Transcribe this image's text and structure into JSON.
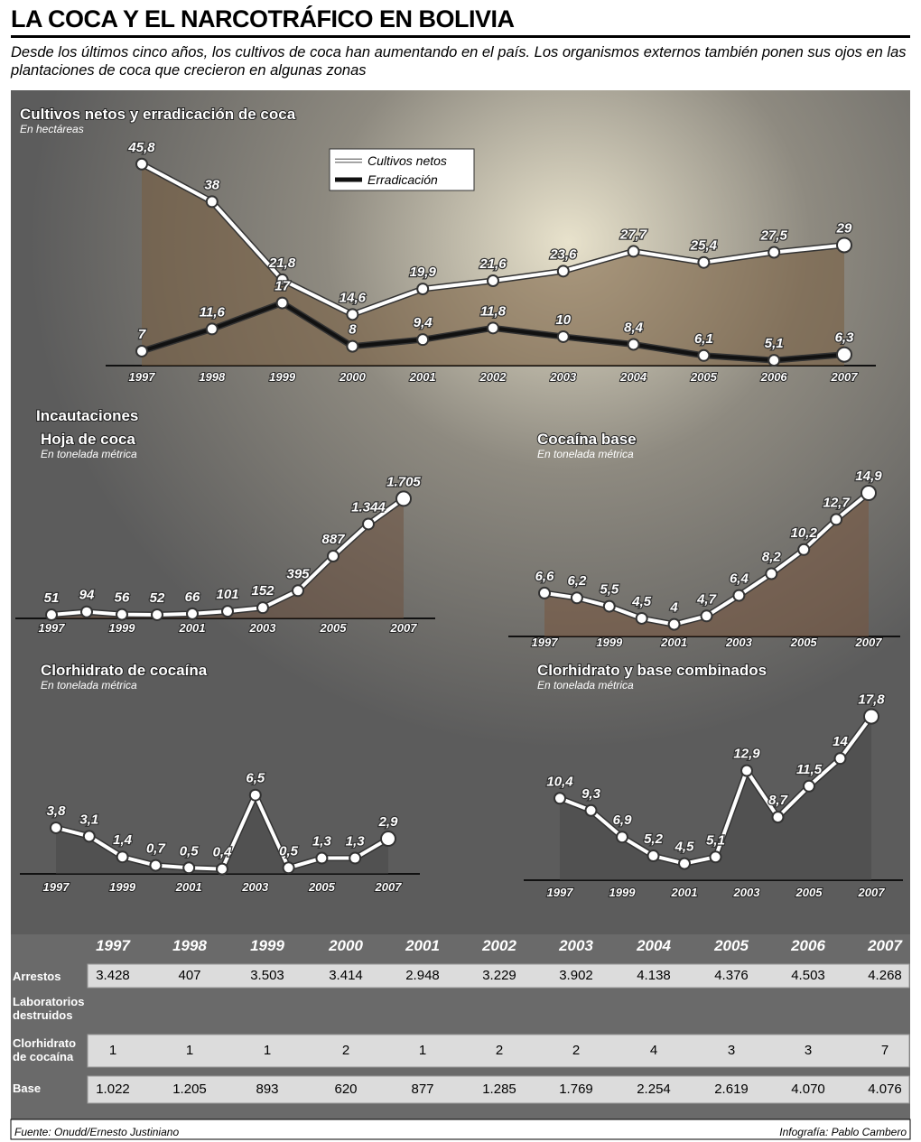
{
  "title": "LA COCA Y EL NARCOTRÁFICO EN BOLIVIA",
  "subtitle": "Desde los últimos cinco años, los cultivos de coca han aumentando en el país. Los organismos externos también ponen sus ojos en las plantaciones de coca que crecieron en algunas zonas",
  "section_title": "Incautaciones",
  "chart_data": [
    {
      "type": "line",
      "title": "Cultivos netos y erradicación de coca",
      "subtitle": "En hectáreas",
      "categories": [
        "1997",
        "1998",
        "1999",
        "2000",
        "2001",
        "2002",
        "2003",
        "2004",
        "2005",
        "2006",
        "2007"
      ],
      "series": [
        {
          "name": "Cultivos netos",
          "color": "#ffffff",
          "values": [
            45.8,
            38,
            21.8,
            14.6,
            19.9,
            21.6,
            23.6,
            27.7,
            25.4,
            27.5,
            29
          ],
          "value_labels": [
            "45,8",
            "38",
            "21,8",
            "14,6",
            "19,9",
            "21,6",
            "23,6",
            "27,7",
            "25,4",
            "27,5",
            "29"
          ]
        },
        {
          "name": "Erradicación",
          "color": "#111111",
          "values": [
            7,
            11.6,
            17,
            8,
            9.4,
            11.8,
            10,
            8.4,
            6.1,
            5.1,
            6.3
          ],
          "value_labels": [
            "7",
            "11,6",
            "17",
            "8",
            "9,4",
            "11,8",
            "10",
            "8,4",
            "6,1",
            "5,1",
            "6,3"
          ]
        }
      ],
      "ylim": [
        4,
        48
      ]
    },
    {
      "type": "line",
      "title": "Hoja de coca",
      "subtitle": "En tonelada métrica",
      "categories": [
        "1997",
        null,
        "1999",
        null,
        "2001",
        null,
        "2003",
        null,
        "2005",
        null,
        "2007"
      ],
      "values": [
        51,
        94,
        56,
        52,
        66,
        101,
        152,
        395,
        887,
        1344,
        1705
      ],
      "value_labels": [
        "51",
        "94",
        "56",
        "52",
        "66",
        "101",
        "152",
        "395",
        "887",
        "1.344",
        "1.705"
      ],
      "color": "#ffffff",
      "ylim": [
        0,
        1800
      ]
    },
    {
      "type": "line",
      "title": "Cocaína base",
      "subtitle": "En tonelada métrica",
      "categories": [
        "1997",
        null,
        "1999",
        null,
        "2001",
        null,
        "2003",
        null,
        "2005",
        null,
        "2007"
      ],
      "values": [
        6.6,
        6.2,
        5.5,
        4.5,
        4,
        4.7,
        6.4,
        8.2,
        10.2,
        12.7,
        14.9
      ],
      "value_labels": [
        "6,6",
        "6,2",
        "5,5",
        "4,5",
        "4",
        "4,7",
        "6,4",
        "8,2",
        "10,2",
        "12,7",
        "14,9"
      ],
      "color": "#ffffff",
      "ylim": [
        3,
        15.5
      ]
    },
    {
      "type": "line",
      "title": "Clorhidrato de cocaína",
      "subtitle": "En tonelada métrica",
      "categories": [
        "1997",
        null,
        "1999",
        null,
        "2001",
        null,
        "2003",
        null,
        "2005",
        null,
        "2007"
      ],
      "values": [
        3.8,
        3.1,
        1.4,
        0.7,
        0.5,
        0.4,
        6.5,
        0.5,
        1.3,
        1.3,
        2.9
      ],
      "value_labels": [
        "3,8",
        "3,1",
        "1,4",
        "0,7",
        "0,5",
        "0,4",
        "6,5",
        "0,5",
        "1,3",
        "1,3",
        "2,9"
      ],
      "color": "#ffffff",
      "ylim": [
        0,
        14
      ]
    },
    {
      "type": "line",
      "title": "Clorhidrato y base combinados",
      "subtitle": "En tonelada métrica",
      "categories": [
        "1997",
        null,
        "1999",
        null,
        "2001",
        null,
        "2003",
        null,
        "2005",
        null,
        "2007"
      ],
      "values": [
        10.4,
        9.3,
        6.9,
        5.2,
        4.5,
        5.1,
        12.9,
        8.7,
        11.5,
        14,
        17.8
      ],
      "value_labels": [
        "10,4",
        "9,3",
        "6,9",
        "5,2",
        "4,5",
        "5,1",
        "12,9",
        "8,7",
        "11,5",
        "14",
        "17,8"
      ],
      "color": "#ffffff",
      "ylim": [
        3,
        18.5
      ]
    }
  ],
  "table": {
    "header": [
      "1997",
      "1998",
      "1999",
      "2000",
      "2001",
      "2002",
      "2003",
      "2004",
      "2005",
      "2006",
      "2007"
    ],
    "rows": [
      {
        "label": "Arrestos",
        "cells": [
          "3.428",
          "407",
          "3.503",
          "3.414",
          "2.948",
          "3.229",
          "3.902",
          "4.138",
          "4.376",
          "4.503",
          "4.268"
        ]
      },
      {
        "label": "Laboratorios destruidos"
      },
      {
        "label": "Clorhidrato de cocaína",
        "cells": [
          "1",
          "1",
          "1",
          "2",
          "1",
          "2",
          "2",
          "4",
          "3",
          "3",
          "7"
        ]
      },
      {
        "label": "Base",
        "cells": [
          "1.022",
          "1.205",
          "893",
          "620",
          "877",
          "1.285",
          "1.769",
          "2.254",
          "2.619",
          "4.070",
          "4.076"
        ]
      }
    ]
  },
  "footer": {
    "source": "Fuente: Onudd/Ernesto Justiniano",
    "credit": "Infografía: Pablo Cambero"
  }
}
